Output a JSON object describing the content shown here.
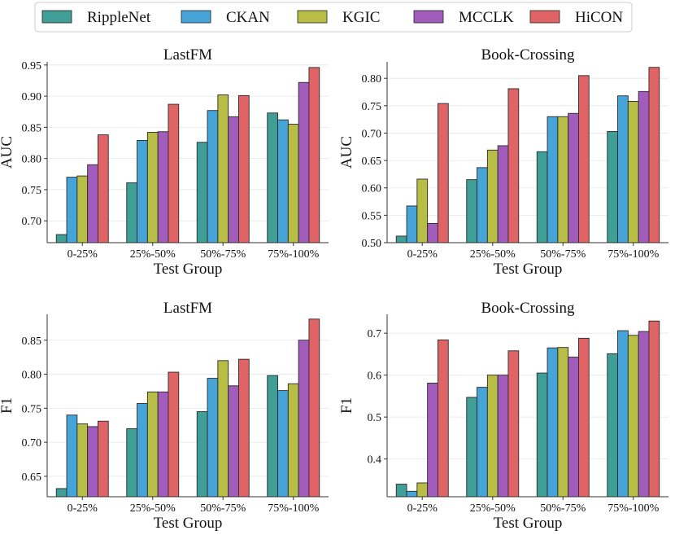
{
  "legend": {
    "entries": [
      {
        "name": "RippleNet",
        "color": "#3f9e95"
      },
      {
        "name": "CKAN",
        "color": "#47a4d9"
      },
      {
        "name": "KGIC",
        "color": "#b7bd45"
      },
      {
        "name": "MCCLK",
        "color": "#a25cbc"
      },
      {
        "name": "HiCON",
        "color": "#e06466"
      }
    ]
  },
  "chart_data": [
    {
      "type": "bar",
      "title": "LastFM",
      "xlabel": "Test Group",
      "ylabel": "AUC",
      "categories": [
        "0-25%",
        "25%-50%",
        "50%-75%",
        "75%-100%"
      ],
      "ylim": [
        0.665,
        0.955
      ],
      "yticks": [
        "0.70",
        "0.75",
        "0.80",
        "0.85",
        "0.90",
        "0.95"
      ],
      "ytick_values": [
        0.7,
        0.75,
        0.8,
        0.85,
        0.9,
        0.95
      ],
      "series": [
        {
          "name": "RippleNet",
          "values": [
            0.678,
            0.761,
            0.826,
            0.873
          ]
        },
        {
          "name": "CKAN",
          "values": [
            0.77,
            0.829,
            0.877,
            0.862
          ]
        },
        {
          "name": "KGIC",
          "values": [
            0.772,
            0.842,
            0.902,
            0.855
          ]
        },
        {
          "name": "MCCLK",
          "values": [
            0.79,
            0.843,
            0.867,
            0.922
          ]
        },
        {
          "name": "HiCON",
          "values": [
            0.838,
            0.887,
            0.901,
            0.946
          ]
        }
      ]
    },
    {
      "type": "bar",
      "title": "Book-Crossing",
      "xlabel": "Test Group",
      "ylabel": "AUC",
      "categories": [
        "0-25%",
        "25%-50%",
        "50%-75%",
        "75%-100%"
      ],
      "ylim": [
        0.5,
        0.83
      ],
      "yticks": [
        "0.50",
        "0.55",
        "0.60",
        "0.65",
        "0.70",
        "0.75",
        "0.80"
      ],
      "ytick_values": [
        0.5,
        0.55,
        0.6,
        0.65,
        0.7,
        0.75,
        0.8
      ],
      "series": [
        {
          "name": "RippleNet",
          "values": [
            0.512,
            0.615,
            0.666,
            0.703
          ]
        },
        {
          "name": "CKAN",
          "values": [
            0.567,
            0.637,
            0.73,
            0.768
          ]
        },
        {
          "name": "KGIC",
          "values": [
            0.616,
            0.669,
            0.73,
            0.758
          ]
        },
        {
          "name": "MCCLK",
          "values": [
            0.535,
            0.677,
            0.736,
            0.776
          ]
        },
        {
          "name": "HiCON",
          "values": [
            0.754,
            0.781,
            0.805,
            0.82
          ]
        }
      ]
    },
    {
      "type": "bar",
      "title": "LastFM",
      "xlabel": "Test Group",
      "ylabel": "F1",
      "categories": [
        "0-25%",
        "25%-50%",
        "50%-75%",
        "75%-100%"
      ],
      "ylim": [
        0.62,
        0.888
      ],
      "yticks": [
        "0.65",
        "0.70",
        "0.75",
        "0.80",
        "0.85"
      ],
      "ytick_values": [
        0.65,
        0.7,
        0.75,
        0.8,
        0.85
      ],
      "series": [
        {
          "name": "RippleNet",
          "values": [
            0.632,
            0.72,
            0.745,
            0.798
          ]
        },
        {
          "name": "CKAN",
          "values": [
            0.74,
            0.757,
            0.794,
            0.776
          ]
        },
        {
          "name": "KGIC",
          "values": [
            0.727,
            0.774,
            0.82,
            0.786
          ]
        },
        {
          "name": "MCCLK",
          "values": [
            0.723,
            0.774,
            0.783,
            0.85
          ]
        },
        {
          "name": "HiCON",
          "values": [
            0.731,
            0.803,
            0.822,
            0.881
          ]
        }
      ]
    },
    {
      "type": "bar",
      "title": "Book-Crossing",
      "xlabel": "Test Group",
      "ylabel": "F1",
      "categories": [
        "0-25%",
        "25%-50%",
        "50%-75%",
        "75%-100%"
      ],
      "ylim": [
        0.31,
        0.745
      ],
      "yticks": [
        "0.4",
        "0.5",
        "0.6",
        "0.7"
      ],
      "ytick_values": [
        0.4,
        0.5,
        0.6,
        0.7
      ],
      "series": [
        {
          "name": "RippleNet",
          "values": [
            0.34,
            0.547,
            0.605,
            0.651
          ]
        },
        {
          "name": "CKAN",
          "values": [
            0.323,
            0.571,
            0.665,
            0.706
          ]
        },
        {
          "name": "KGIC",
          "values": [
            0.343,
            0.6,
            0.666,
            0.695
          ]
        },
        {
          "name": "MCCLK",
          "values": [
            0.581,
            0.6,
            0.643,
            0.704
          ]
        },
        {
          "name": "HiCON",
          "values": [
            0.684,
            0.658,
            0.688,
            0.729
          ]
        }
      ]
    }
  ]
}
